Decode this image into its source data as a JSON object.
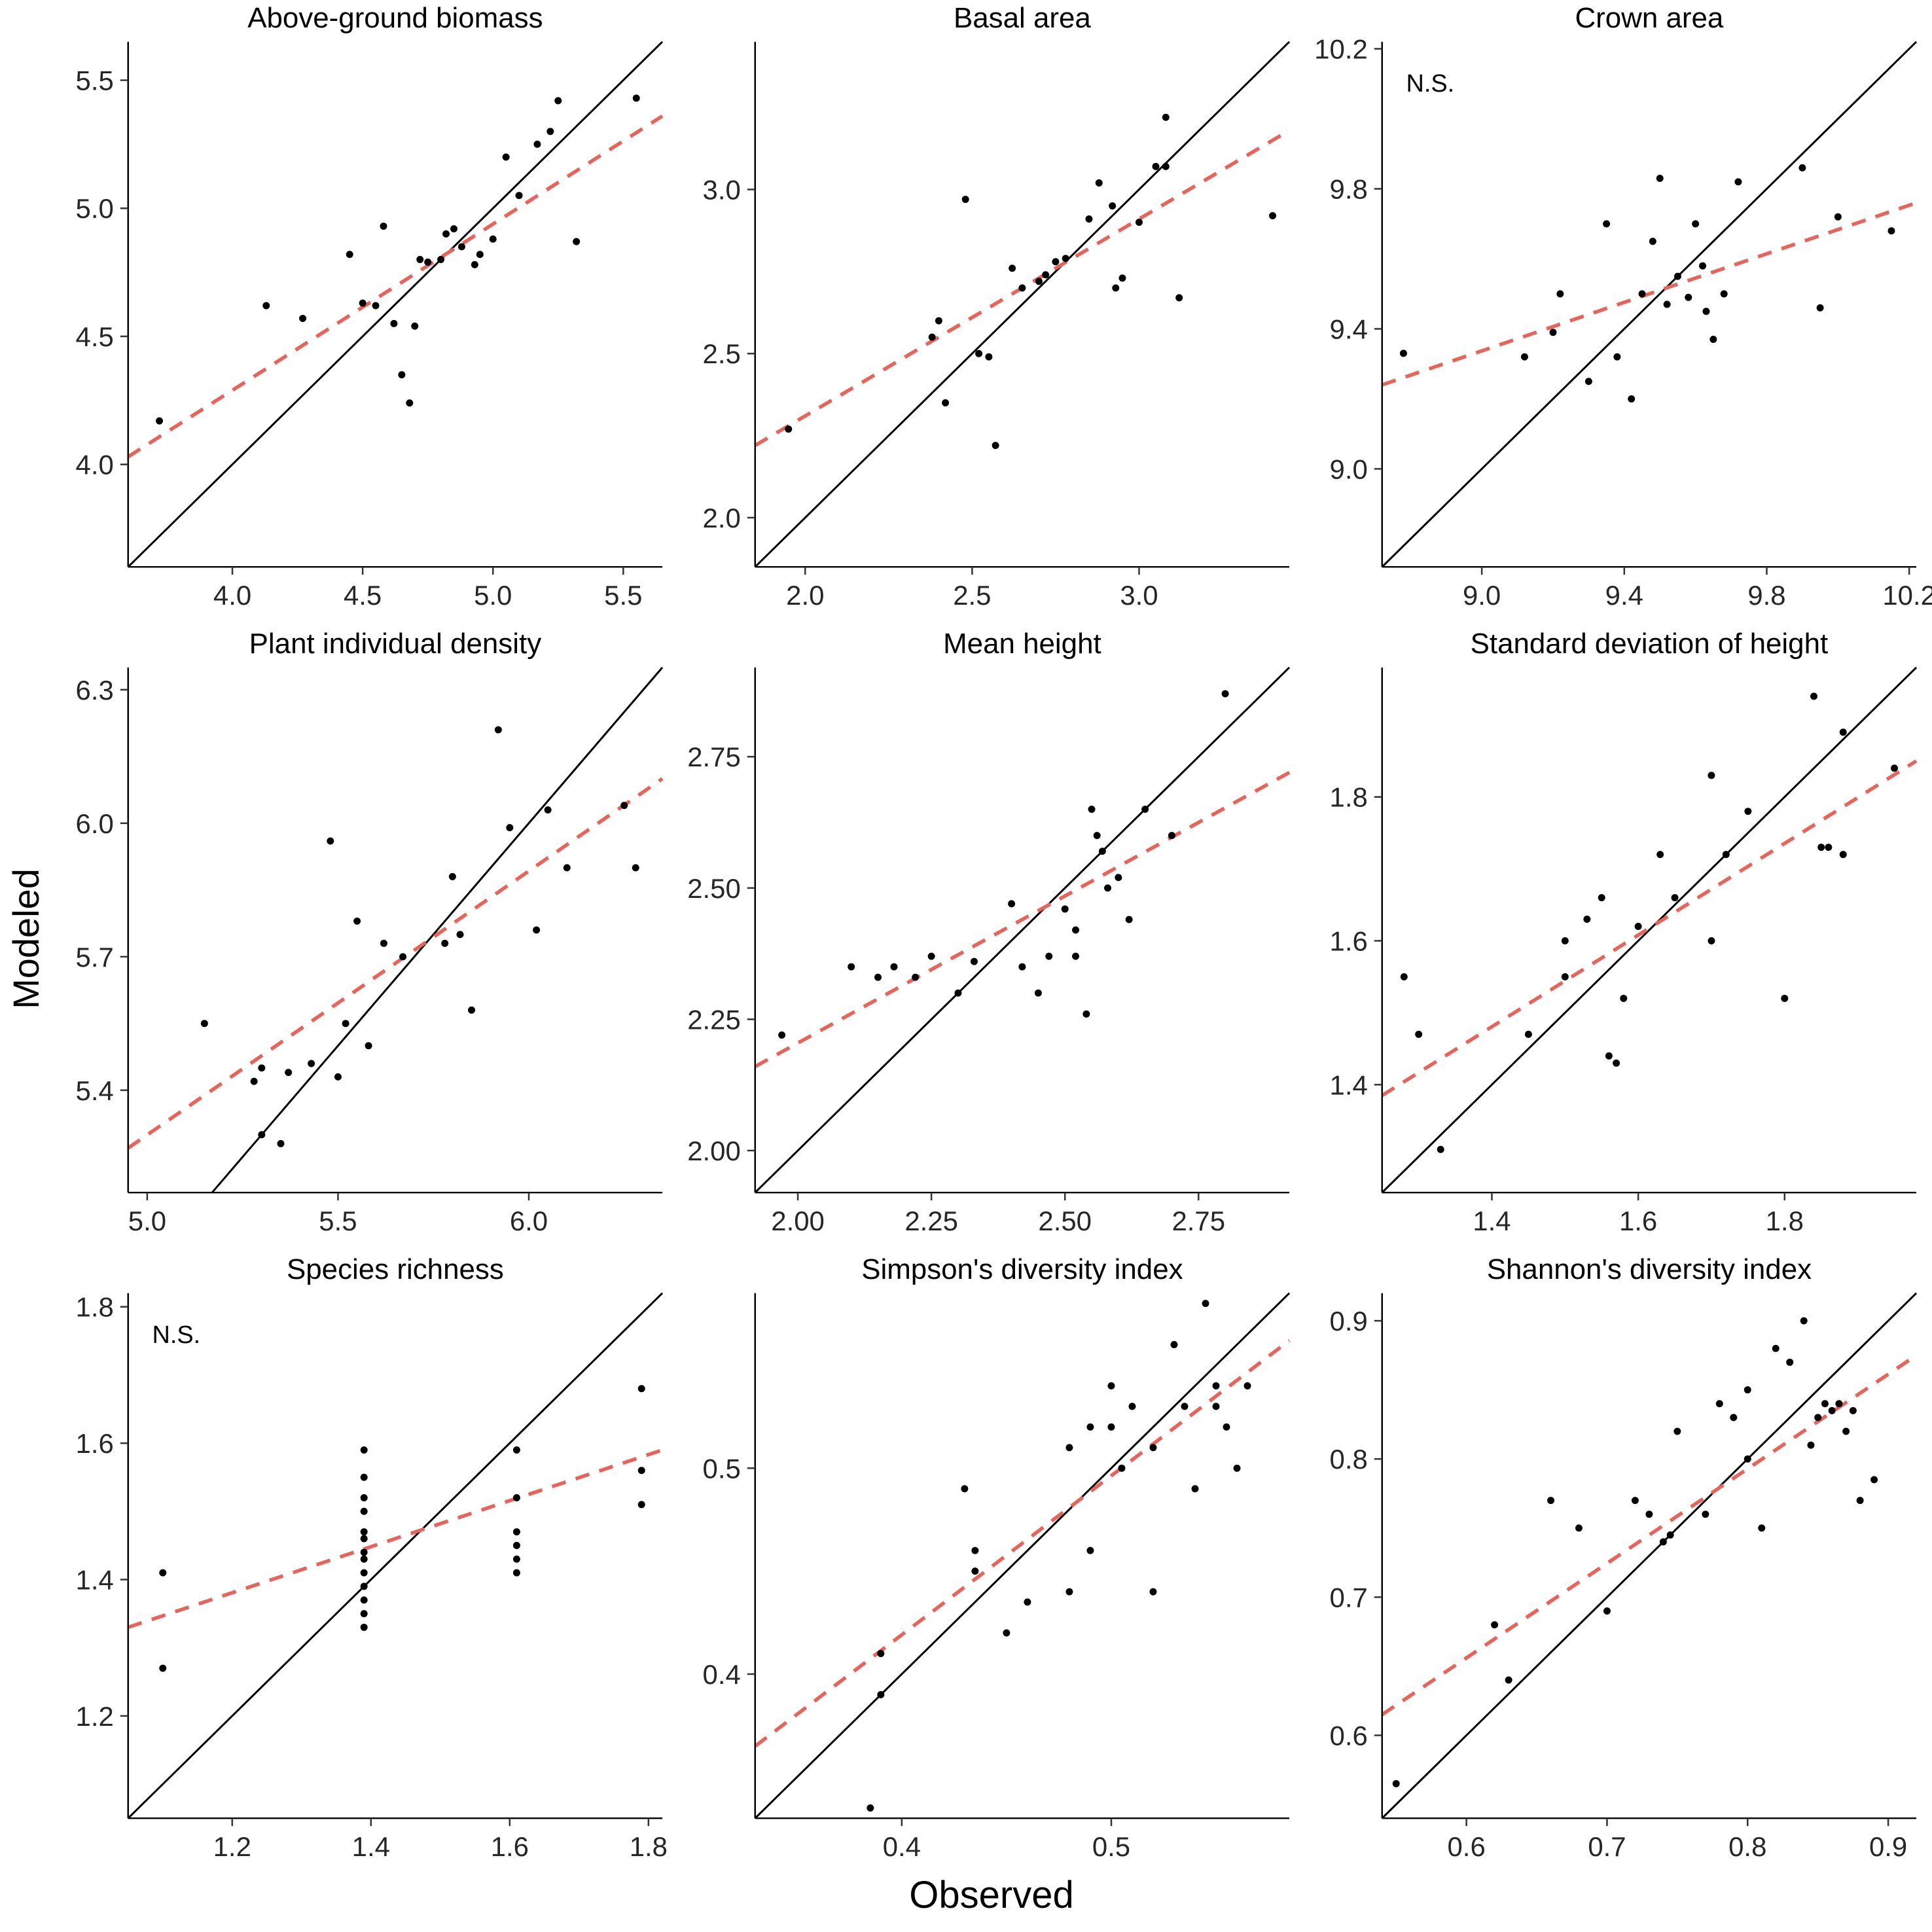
{
  "figure": {
    "x_axis_label": "Observed",
    "y_axis_label": "Modeled",
    "colors": {
      "point": "#000000",
      "identity_line": "#000000",
      "fit_line": "#E8635A",
      "tick_text": "#262626",
      "title_text": "#000000"
    }
  },
  "chart_data": [
    {
      "type": "scatter",
      "title": "Above-ground biomass",
      "annotation": "",
      "xlim": [
        3.6,
        5.65
      ],
      "ylim": [
        3.6,
        5.65
      ],
      "xticks": [
        4.0,
        4.5,
        5.0,
        5.5
      ],
      "xtick_labels": [
        "4.0",
        "4.5",
        "5.0",
        "5.5"
      ],
      "yticks": [
        4.0,
        4.5,
        5.0,
        5.5
      ],
      "ytick_labels": [
        "4.0",
        "4.5",
        "5.0",
        "5.5"
      ],
      "identity_line": true,
      "fit_line": {
        "x1": 3.6,
        "y1": 4.03,
        "x2": 5.65,
        "y2": 5.36
      },
      "points": [
        [
          3.72,
          4.17
        ],
        [
          4.13,
          4.62
        ],
        [
          4.27,
          4.57
        ],
        [
          4.45,
          4.82
        ],
        [
          4.5,
          4.63
        ],
        [
          4.55,
          4.62
        ],
        [
          4.58,
          4.93
        ],
        [
          4.62,
          4.55
        ],
        [
          4.65,
          4.35
        ],
        [
          4.68,
          4.24
        ],
        [
          4.7,
          4.54
        ],
        [
          4.72,
          4.8
        ],
        [
          4.75,
          4.79
        ],
        [
          4.8,
          4.8
        ],
        [
          4.82,
          4.9
        ],
        [
          4.85,
          4.92
        ],
        [
          4.88,
          4.85
        ],
        [
          4.93,
          4.78
        ],
        [
          4.95,
          4.82
        ],
        [
          5.0,
          4.88
        ],
        [
          5.05,
          5.2
        ],
        [
          5.1,
          5.05
        ],
        [
          5.17,
          5.25
        ],
        [
          5.22,
          5.3
        ],
        [
          5.25,
          5.42
        ],
        [
          5.32,
          4.87
        ],
        [
          5.55,
          5.43
        ]
      ]
    },
    {
      "type": "scatter",
      "title": "Basal area",
      "annotation": "",
      "xlim": [
        1.85,
        3.45
      ],
      "ylim": [
        1.85,
        3.45
      ],
      "xticks": [
        2.0,
        2.5,
        3.0
      ],
      "xtick_labels": [
        "2.0",
        "2.5",
        "3.0"
      ],
      "yticks": [
        2.0,
        2.5,
        3.0
      ],
      "ytick_labels": [
        "2.0",
        "2.5",
        "3.0"
      ],
      "identity_line": true,
      "fit_line": {
        "x1": 1.85,
        "y1": 2.22,
        "x2": 3.45,
        "y2": 3.18
      },
      "points": [
        [
          1.95,
          2.27
        ],
        [
          2.38,
          2.55
        ],
        [
          2.4,
          2.6
        ],
        [
          2.42,
          2.35
        ],
        [
          2.48,
          2.97
        ],
        [
          2.52,
          2.5
        ],
        [
          2.55,
          2.49
        ],
        [
          2.57,
          2.22
        ],
        [
          2.62,
          2.76
        ],
        [
          2.65,
          2.7
        ],
        [
          2.7,
          2.72
        ],
        [
          2.72,
          2.74
        ],
        [
          2.75,
          2.78
        ],
        [
          2.78,
          2.79
        ],
        [
          2.85,
          2.91
        ],
        [
          2.88,
          3.02
        ],
        [
          2.92,
          2.95
        ],
        [
          2.93,
          2.7
        ],
        [
          2.95,
          2.73
        ],
        [
          3.0,
          2.9
        ],
        [
          3.05,
          3.07
        ],
        [
          3.08,
          3.07
        ],
        [
          3.08,
          3.22
        ],
        [
          3.12,
          2.67
        ],
        [
          3.4,
          2.92
        ]
      ]
    },
    {
      "type": "scatter",
      "title": "Crown area",
      "annotation": "N.S.",
      "xlim": [
        8.72,
        10.22
      ],
      "ylim": [
        8.72,
        10.22
      ],
      "xticks": [
        9.0,
        9.4,
        9.8,
        10.2
      ],
      "xtick_labels": [
        "9.0",
        "9.4",
        "9.8",
        "10.2"
      ],
      "yticks": [
        9.0,
        9.4,
        9.8,
        10.2
      ],
      "ytick_labels": [
        "9.0",
        "9.4",
        "9.8",
        "10.2"
      ],
      "identity_line": true,
      "fit_line": {
        "x1": 8.72,
        "y1": 9.24,
        "x2": 10.22,
        "y2": 9.76
      },
      "points": [
        [
          8.78,
          9.33
        ],
        [
          9.12,
          9.32
        ],
        [
          9.2,
          9.39
        ],
        [
          9.22,
          9.5
        ],
        [
          9.3,
          9.25
        ],
        [
          9.35,
          9.7
        ],
        [
          9.38,
          9.32
        ],
        [
          9.42,
          9.2
        ],
        [
          9.45,
          9.5
        ],
        [
          9.48,
          9.65
        ],
        [
          9.5,
          9.83
        ],
        [
          9.52,
          9.47
        ],
        [
          9.55,
          9.55
        ],
        [
          9.58,
          9.49
        ],
        [
          9.6,
          9.7
        ],
        [
          9.62,
          9.58
        ],
        [
          9.63,
          9.45
        ],
        [
          9.65,
          9.37
        ],
        [
          9.68,
          9.5
        ],
        [
          9.72,
          9.82
        ],
        [
          9.9,
          9.86
        ],
        [
          9.95,
          9.46
        ],
        [
          10.0,
          9.72
        ],
        [
          10.15,
          9.68
        ]
      ]
    },
    {
      "type": "scatter",
      "title": "Plant individual density",
      "annotation": "",
      "xlim": [
        4.95,
        6.35
      ],
      "ylim": [
        5.17,
        6.35
      ],
      "xticks": [
        5.0,
        5.5,
        6.0
      ],
      "xtick_labels": [
        "5.0",
        "5.5",
        "6.0"
      ],
      "yticks": [
        5.4,
        5.7,
        6.0,
        6.3
      ],
      "ytick_labels": [
        "5.4",
        "5.7",
        "6.0",
        "6.3"
      ],
      "identity_line": true,
      "fit_line": {
        "x1": 4.95,
        "y1": 5.27,
        "x2": 6.35,
        "y2": 6.1
      },
      "points": [
        [
          5.15,
          5.55
        ],
        [
          5.28,
          5.42
        ],
        [
          5.3,
          5.45
        ],
        [
          5.3,
          5.3
        ],
        [
          5.35,
          5.28
        ],
        [
          5.37,
          5.44
        ],
        [
          5.43,
          5.46
        ],
        [
          5.48,
          5.96
        ],
        [
          5.5,
          5.43
        ],
        [
          5.52,
          5.55
        ],
        [
          5.55,
          5.78
        ],
        [
          5.58,
          5.5
        ],
        [
          5.62,
          5.73
        ],
        [
          5.67,
          5.7
        ],
        [
          5.78,
          5.73
        ],
        [
          5.8,
          5.88
        ],
        [
          5.82,
          5.75
        ],
        [
          5.85,
          5.58
        ],
        [
          5.92,
          6.21
        ],
        [
          5.95,
          5.99
        ],
        [
          6.02,
          5.76
        ],
        [
          6.05,
          6.03
        ],
        [
          6.1,
          5.9
        ],
        [
          6.25,
          6.04
        ],
        [
          6.28,
          5.9
        ]
      ]
    },
    {
      "type": "scatter",
      "title": "Mean height",
      "annotation": "",
      "xlim": [
        1.92,
        2.92
      ],
      "ylim": [
        1.92,
        2.92
      ],
      "xticks": [
        2.0,
        2.25,
        2.5,
        2.75
      ],
      "xtick_labels": [
        "2.00",
        "2.25",
        "2.50",
        "2.75"
      ],
      "yticks": [
        2.0,
        2.25,
        2.5,
        2.75
      ],
      "ytick_labels": [
        "2.00",
        "2.25",
        "2.50",
        "2.75"
      ],
      "identity_line": true,
      "fit_line": {
        "x1": 1.92,
        "y1": 2.16,
        "x2": 2.92,
        "y2": 2.72
      },
      "points": [
        [
          1.97,
          2.22
        ],
        [
          2.1,
          2.35
        ],
        [
          2.15,
          2.33
        ],
        [
          2.18,
          2.35
        ],
        [
          2.22,
          2.33
        ],
        [
          2.25,
          2.37
        ],
        [
          2.3,
          2.3
        ],
        [
          2.33,
          2.36
        ],
        [
          2.4,
          2.47
        ],
        [
          2.42,
          2.35
        ],
        [
          2.45,
          2.3
        ],
        [
          2.47,
          2.37
        ],
        [
          2.5,
          2.46
        ],
        [
          2.52,
          2.42
        ],
        [
          2.52,
          2.37
        ],
        [
          2.54,
          2.26
        ],
        [
          2.55,
          2.65
        ],
        [
          2.56,
          2.6
        ],
        [
          2.57,
          2.57
        ],
        [
          2.58,
          2.5
        ],
        [
          2.6,
          2.52
        ],
        [
          2.62,
          2.44
        ],
        [
          2.65,
          2.65
        ],
        [
          2.7,
          2.6
        ],
        [
          2.8,
          2.87
        ]
      ]
    },
    {
      "type": "scatter",
      "title": "Standard deviation of height",
      "annotation": "",
      "xlim": [
        1.25,
        1.98
      ],
      "ylim": [
        1.25,
        1.98
      ],
      "xticks": [
        1.4,
        1.6,
        1.8
      ],
      "xtick_labels": [
        "1.4",
        "1.6",
        "1.8"
      ],
      "yticks": [
        1.4,
        1.6,
        1.8
      ],
      "ytick_labels": [
        "1.4",
        "1.6",
        "1.8"
      ],
      "identity_line": true,
      "fit_line": {
        "x1": 1.25,
        "y1": 1.385,
        "x2": 1.98,
        "y2": 1.85
      },
      "points": [
        [
          1.28,
          1.55
        ],
        [
          1.3,
          1.47
        ],
        [
          1.33,
          1.31
        ],
        [
          1.45,
          1.47
        ],
        [
          1.5,
          1.55
        ],
        [
          1.5,
          1.6
        ],
        [
          1.53,
          1.63
        ],
        [
          1.55,
          1.66
        ],
        [
          1.56,
          1.44
        ],
        [
          1.57,
          1.43
        ],
        [
          1.58,
          1.52
        ],
        [
          1.6,
          1.62
        ],
        [
          1.63,
          1.72
        ],
        [
          1.65,
          1.66
        ],
        [
          1.7,
          1.83
        ],
        [
          1.7,
          1.6
        ],
        [
          1.72,
          1.72
        ],
        [
          1.75,
          1.78
        ],
        [
          1.8,
          1.52
        ],
        [
          1.84,
          1.94
        ],
        [
          1.85,
          1.73
        ],
        [
          1.86,
          1.73
        ],
        [
          1.88,
          1.72
        ],
        [
          1.88,
          1.89
        ],
        [
          1.95,
          1.84
        ]
      ]
    },
    {
      "type": "scatter",
      "title": "Species richness",
      "annotation": "N.S.",
      "xlim": [
        1.05,
        1.82
      ],
      "ylim": [
        1.05,
        1.82
      ],
      "xticks": [
        1.2,
        1.4,
        1.6,
        1.8
      ],
      "xtick_labels": [
        "1.2",
        "1.4",
        "1.6",
        "1.8"
      ],
      "yticks": [
        1.2,
        1.4,
        1.6,
        1.8
      ],
      "ytick_labels": [
        "1.2",
        "1.4",
        "1.6",
        "1.8"
      ],
      "identity_line": true,
      "fit_line": {
        "x1": 1.05,
        "y1": 1.33,
        "x2": 1.82,
        "y2": 1.59
      },
      "points": [
        [
          1.1,
          1.41
        ],
        [
          1.1,
          1.27
        ],
        [
          1.39,
          1.59
        ],
        [
          1.39,
          1.55
        ],
        [
          1.39,
          1.52
        ],
        [
          1.39,
          1.5
        ],
        [
          1.39,
          1.47
        ],
        [
          1.39,
          1.46
        ],
        [
          1.39,
          1.44
        ],
        [
          1.39,
          1.43
        ],
        [
          1.39,
          1.41
        ],
        [
          1.39,
          1.39
        ],
        [
          1.39,
          1.37
        ],
        [
          1.39,
          1.35
        ],
        [
          1.39,
          1.33
        ],
        [
          1.61,
          1.59
        ],
        [
          1.61,
          1.52
        ],
        [
          1.61,
          1.47
        ],
        [
          1.61,
          1.45
        ],
        [
          1.61,
          1.43
        ],
        [
          1.61,
          1.41
        ],
        [
          1.79,
          1.68
        ],
        [
          1.79,
          1.56
        ],
        [
          1.79,
          1.51
        ]
      ]
    },
    {
      "type": "scatter",
      "title": "Simpson's diversity index",
      "annotation": "",
      "xlim": [
        0.33,
        0.585
      ],
      "ylim": [
        0.33,
        0.585
      ],
      "xticks": [
        0.4,
        0.5
      ],
      "xtick_labels": [
        "0.4",
        "0.5"
      ],
      "yticks": [
        0.4,
        0.5
      ],
      "ytick_labels": [
        "0.4",
        "0.5"
      ],
      "identity_line": true,
      "fit_line": {
        "x1": 0.33,
        "y1": 0.365,
        "x2": 0.585,
        "y2": 0.562
      },
      "points": [
        [
          0.385,
          0.335
        ],
        [
          0.39,
          0.39
        ],
        [
          0.39,
          0.41
        ],
        [
          0.43,
          0.49
        ],
        [
          0.435,
          0.46
        ],
        [
          0.435,
          0.45
        ],
        [
          0.45,
          0.42
        ],
        [
          0.46,
          0.435
        ],
        [
          0.48,
          0.44
        ],
        [
          0.48,
          0.51
        ],
        [
          0.49,
          0.52
        ],
        [
          0.49,
          0.46
        ],
        [
          0.5,
          0.54
        ],
        [
          0.5,
          0.52
        ],
        [
          0.505,
          0.5
        ],
        [
          0.51,
          0.53
        ],
        [
          0.52,
          0.51
        ],
        [
          0.52,
          0.44
        ],
        [
          0.53,
          0.56
        ],
        [
          0.535,
          0.53
        ],
        [
          0.54,
          0.49
        ],
        [
          0.545,
          0.58
        ],
        [
          0.55,
          0.54
        ],
        [
          0.55,
          0.53
        ],
        [
          0.555,
          0.52
        ],
        [
          0.56,
          0.5
        ],
        [
          0.565,
          0.54
        ]
      ]
    },
    {
      "type": "scatter",
      "title": "Shannon's diversity index",
      "annotation": "",
      "xlim": [
        0.54,
        0.92
      ],
      "ylim": [
        0.54,
        0.92
      ],
      "xticks": [
        0.6,
        0.7,
        0.8,
        0.9
      ],
      "xtick_labels": [
        "0.6",
        "0.7",
        "0.8",
        "0.9"
      ],
      "yticks": [
        0.6,
        0.7,
        0.8,
        0.9
      ],
      "ytick_labels": [
        "0.6",
        "0.7",
        "0.8",
        "0.9"
      ],
      "identity_line": true,
      "fit_line": {
        "x1": 0.54,
        "y1": 0.615,
        "x2": 0.92,
        "y2": 0.875
      },
      "points": [
        [
          0.55,
          0.565
        ],
        [
          0.62,
          0.68
        ],
        [
          0.63,
          0.64
        ],
        [
          0.66,
          0.77
        ],
        [
          0.68,
          0.75
        ],
        [
          0.7,
          0.69
        ],
        [
          0.72,
          0.77
        ],
        [
          0.73,
          0.76
        ],
        [
          0.74,
          0.74
        ],
        [
          0.745,
          0.745
        ],
        [
          0.75,
          0.82
        ],
        [
          0.77,
          0.76
        ],
        [
          0.78,
          0.84
        ],
        [
          0.79,
          0.83
        ],
        [
          0.8,
          0.85
        ],
        [
          0.8,
          0.8
        ],
        [
          0.81,
          0.75
        ],
        [
          0.82,
          0.88
        ],
        [
          0.83,
          0.87
        ],
        [
          0.84,
          0.9
        ],
        [
          0.845,
          0.81
        ],
        [
          0.85,
          0.83
        ],
        [
          0.855,
          0.84
        ],
        [
          0.86,
          0.835
        ],
        [
          0.865,
          0.84
        ],
        [
          0.87,
          0.82
        ],
        [
          0.875,
          0.835
        ],
        [
          0.88,
          0.77
        ],
        [
          0.89,
          0.785
        ]
      ]
    }
  ]
}
